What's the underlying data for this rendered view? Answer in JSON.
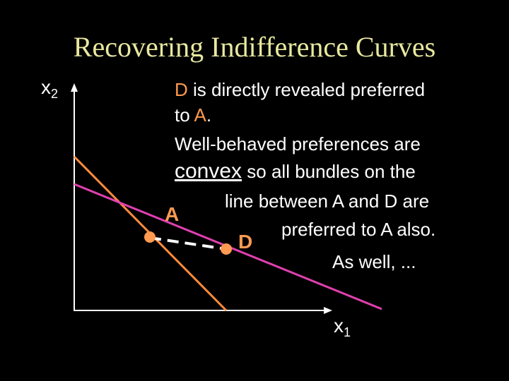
{
  "title": "Recovering Indifference Curves",
  "axes": {
    "y_label": "x",
    "y_sub": "2",
    "x_label": "x",
    "x_sub": "1"
  },
  "points": {
    "a_label": "A",
    "d_label": "D"
  },
  "text": {
    "line1_d": "D",
    "line1_rest": " is directly revealed preferred",
    "line2_to": "to ",
    "line2_a": "A",
    "line2_end": ".",
    "line3": "Well-behaved preferences are",
    "line4_convex": "convex",
    "line4_rest": " so all bundles on the",
    "line5": "line between A and D are",
    "line6": "preferred to A also.",
    "line7": "As well, ..."
  },
  "colors": {
    "background": "#000000",
    "title": "#e8e8a0",
    "budget_line_1": "#ff8c3c",
    "budget_line_2": "#e040b0",
    "point": "#ff9a50",
    "dashed_segment": "#ffffff",
    "axes": "#ffffff"
  }
}
